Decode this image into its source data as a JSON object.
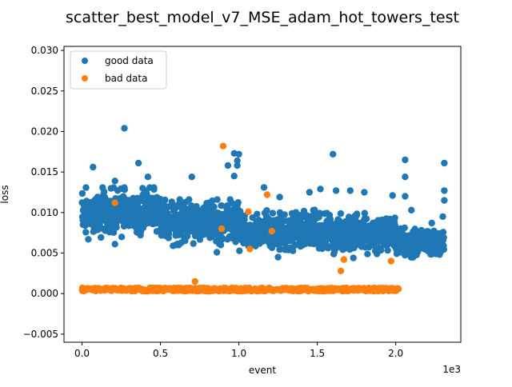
{
  "chart_data": {
    "type": "scatter",
    "title": "scatter_best_model_v7_MSE_adam_hot_towers_test",
    "xlabel": "event",
    "ylabel": "loss",
    "x_offset_text": "1e3",
    "xlim": [
      -0.115,
      2.415
    ],
    "ylim": [
      -0.006,
      0.0305
    ],
    "x_ticks": [
      0.0,
      0.5,
      1.0,
      1.5,
      2.0
    ],
    "x_tick_labels": [
      "0.0",
      "0.5",
      "1.0",
      "1.5",
      "2.0"
    ],
    "y_ticks": [
      -0.005,
      0.0,
      0.005,
      0.01,
      0.015,
      0.02,
      0.025,
      0.03
    ],
    "y_tick_labels": [
      "−0.005",
      "0.000",
      "0.005",
      "0.010",
      "0.015",
      "0.020",
      "0.025",
      "0.030"
    ],
    "grid": false,
    "legend_position": "top-left",
    "series": [
      {
        "name": "good data",
        "color": "#1f77b4",
        "bands": [
          {
            "x_range": [
              0.0,
              0.5
            ],
            "y_center": 0.01,
            "y_spread": 0.0022
          },
          {
            "x_range": [
              0.5,
              1.0
            ],
            "y_center": 0.0088,
            "y_spread": 0.002
          },
          {
            "x_range": [
              1.0,
              1.5
            ],
            "y_center": 0.0078,
            "y_spread": 0.0018
          },
          {
            "x_range": [
              1.5,
              2.0
            ],
            "y_center": 0.0074,
            "y_spread": 0.0018
          },
          {
            "x_range": [
              2.0,
              2.31
            ],
            "y_center": 0.0063,
            "y_spread": 0.0013
          }
        ],
        "outliers": [
          {
            "x": 0.27,
            "y": 0.0204
          },
          {
            "x": 0.36,
            "y": 0.0161
          },
          {
            "x": 0.07,
            "y": 0.0156
          },
          {
            "x": 0.97,
            "y": 0.0173
          },
          {
            "x": 0.99,
            "y": 0.0164
          },
          {
            "x": 1.0,
            "y": 0.0172
          },
          {
            "x": 0.99,
            "y": 0.0158
          },
          {
            "x": 0.93,
            "y": 0.0158
          },
          {
            "x": 0.97,
            "y": 0.0145
          },
          {
            "x": 1.6,
            "y": 0.0172
          },
          {
            "x": 2.06,
            "y": 0.0165
          },
          {
            "x": 2.06,
            "y": 0.0144
          },
          {
            "x": 2.31,
            "y": 0.0161
          },
          {
            "x": 2.31,
            "y": 0.0127
          },
          {
            "x": 2.31,
            "y": 0.0115
          },
          {
            "x": 2.3,
            "y": 0.0095
          },
          {
            "x": 0.7,
            "y": 0.0144
          },
          {
            "x": 1.16,
            "y": 0.0131
          },
          {
            "x": 1.26,
            "y": 0.0119
          },
          {
            "x": 1.45,
            "y": 0.0125
          },
          {
            "x": 1.52,
            "y": 0.0129
          },
          {
            "x": 1.62,
            "y": 0.0127
          },
          {
            "x": 1.71,
            "y": 0.0127
          },
          {
            "x": 1.8,
            "y": 0.0125
          },
          {
            "x": 1.98,
            "y": 0.0121
          },
          {
            "x": 2.06,
            "y": 0.012
          },
          {
            "x": 2.1,
            "y": 0.0103
          },
          {
            "x": 2.23,
            "y": 0.0087
          },
          {
            "x": 0.42,
            "y": 0.0144
          },
          {
            "x": 0.21,
            "y": 0.0139
          },
          {
            "x": 0.04,
            "y": 0.0067
          },
          {
            "x": 0.21,
            "y": 0.0061
          },
          {
            "x": 0.58,
            "y": 0.0059
          },
          {
            "x": 0.86,
            "y": 0.0051
          },
          {
            "x": 1.25,
            "y": 0.0045
          },
          {
            "x": 1.73,
            "y": 0.0044
          }
        ]
      },
      {
        "name": "bad data",
        "color": "#ff7f0e",
        "baseline": {
          "x_range": [
            0.0,
            2.03
          ],
          "y_center": 0.0005,
          "y_spread": 0.0002
        },
        "points": [
          {
            "x": 0.21,
            "y": 0.0112
          },
          {
            "x": 0.9,
            "y": 0.0182
          },
          {
            "x": 0.89,
            "y": 0.008
          },
          {
            "x": 1.06,
            "y": 0.0101
          },
          {
            "x": 1.07,
            "y": 0.0055
          },
          {
            "x": 1.18,
            "y": 0.0122
          },
          {
            "x": 1.21,
            "y": 0.0077
          },
          {
            "x": 0.72,
            "y": 0.0015
          },
          {
            "x": 1.65,
            "y": 0.0028
          },
          {
            "x": 1.67,
            "y": 0.0042
          },
          {
            "x": 1.97,
            "y": 0.004
          }
        ]
      }
    ]
  }
}
